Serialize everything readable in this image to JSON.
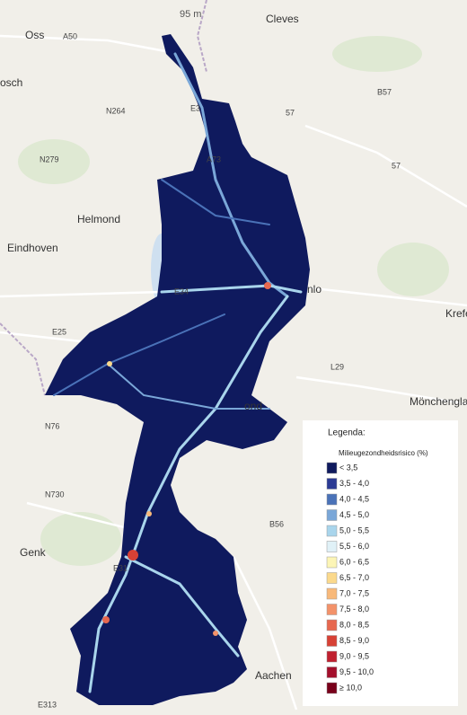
{
  "map": {
    "labels": [
      "95 m",
      "Oss",
      "Cleves",
      "A50",
      "osch",
      "B57",
      "N264",
      "E3",
      "57",
      "N279",
      "A73",
      "57",
      "Helmond",
      "Eindhoven",
      "E34",
      "nlo",
      "E25",
      "Krefe",
      "L29",
      "Mönchengladb",
      "N76",
      "ond",
      "N730",
      "B56",
      "Genk",
      "E31",
      "Aachen",
      "E313"
    ],
    "region_color": "#0f1a5e",
    "legend": {
      "title": "Legenda:",
      "subtitle": "Milieugezondheidsrisico (%)",
      "items": [
        {
          "label": "< 3,5",
          "color": "#0f1a5e"
        },
        {
          "label": "3,5 - 4,0",
          "color": "#2b3a94"
        },
        {
          "label": "4,0 - 4,5",
          "color": "#4a72b8"
        },
        {
          "label": "4,5 - 5,0",
          "color": "#7aa7d8"
        },
        {
          "label": "5,0 - 5,5",
          "color": "#a9d5ec"
        },
        {
          "label": "5,5 - 6,0",
          "color": "#e0f1f7"
        },
        {
          "label": "6,0 - 6,5",
          "color": "#fcf5b6"
        },
        {
          "label": "6,5 - 7,0",
          "color": "#fbd98c"
        },
        {
          "label": "7,0 - 7,5",
          "color": "#f8b97a"
        },
        {
          "label": "7,5 - 8,0",
          "color": "#f3926a"
        },
        {
          "label": "8,0 - 8,5",
          "color": "#e7684f"
        },
        {
          "label": "8,5 - 9,0",
          "color": "#d74135"
        },
        {
          "label": "9,0 - 9,5",
          "color": "#c0202f"
        },
        {
          "label": "9,5 - 10,0",
          "color": "#a30f2b"
        },
        {
          "label": "≥ 10,0",
          "color": "#78001a"
        }
      ]
    }
  }
}
